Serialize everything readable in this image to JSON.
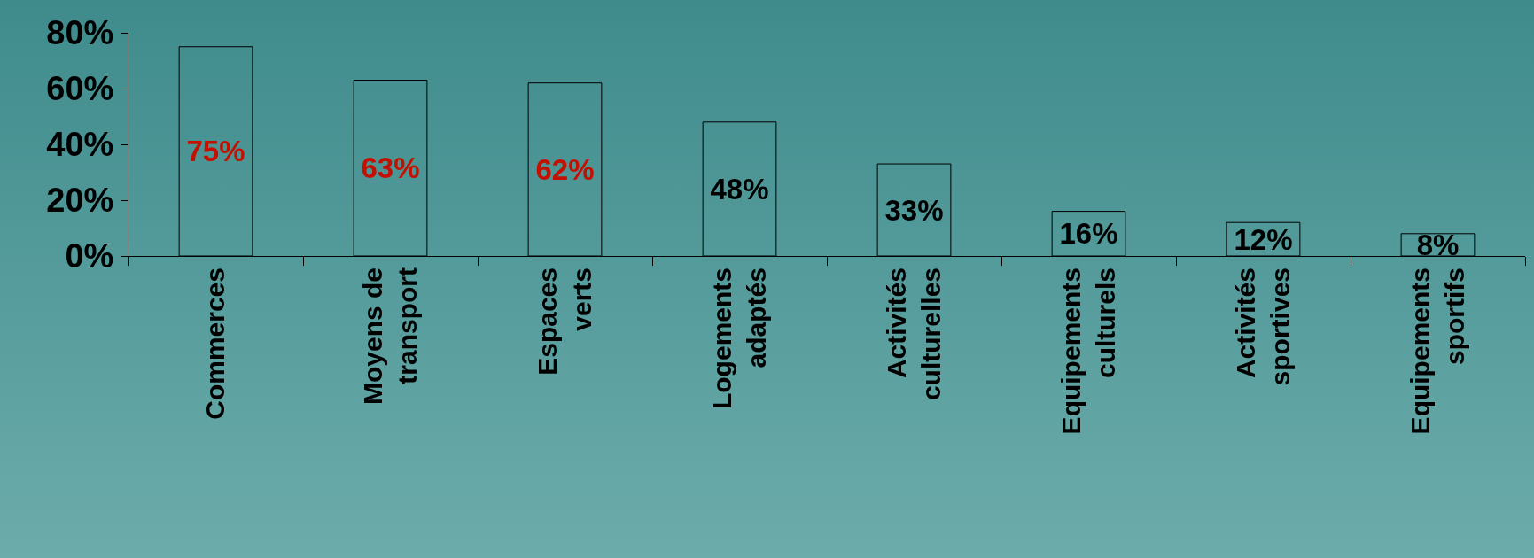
{
  "chart_data": {
    "type": "bar",
    "categories": [
      "Commerces",
      "Moyens de transport",
      "Espaces verts",
      "Logements adaptés",
      "Activités culturelles",
      "Equipements culturels",
      "Activités sportives",
      "Equipements sportifs"
    ],
    "values": [
      75,
      63,
      62,
      48,
      33,
      16,
      12,
      8
    ],
    "value_labels": [
      "75%",
      "63%",
      "62%",
      "48%",
      "33%",
      "16%",
      "12%",
      "8%"
    ],
    "ylim": [
      0,
      80
    ],
    "yticks": [
      {
        "value": 0,
        "label": "0%"
      },
      {
        "value": 20,
        "label": "20%"
      },
      {
        "value": 40,
        "label": "40%"
      },
      {
        "value": 60,
        "label": "60%"
      },
      {
        "value": 80,
        "label": "80%"
      }
    ],
    "grid": false,
    "legend": false
  }
}
